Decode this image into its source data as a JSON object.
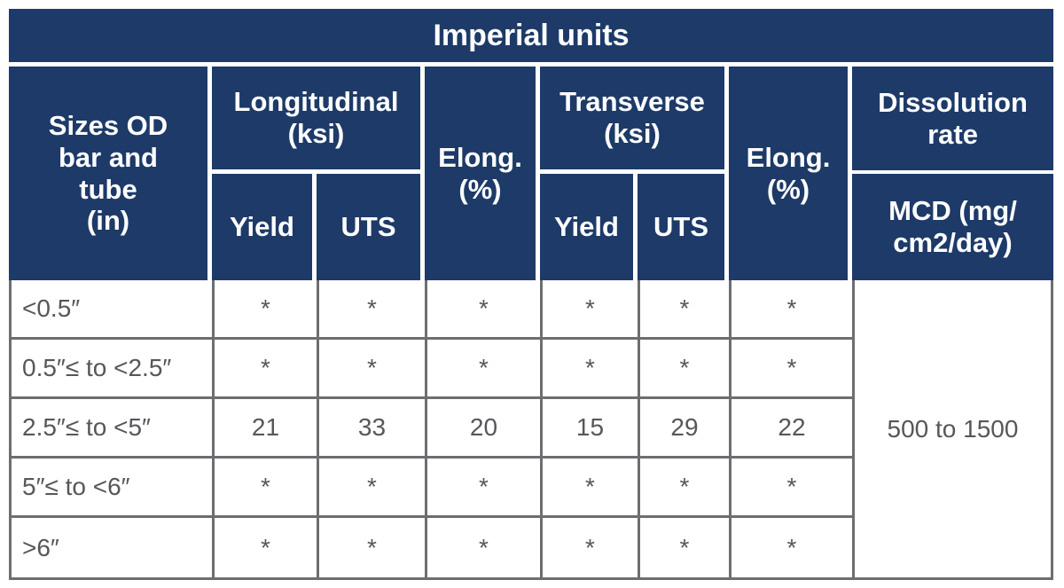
{
  "table": {
    "title": "Imperial units",
    "header": {
      "sizes": "Sizes OD\nbar and\ntube\n(in)",
      "longitudinal": "Longitudinal\n(ksi)",
      "transverse": "Transverse\n(ksi)",
      "elong_longitudinal": "Elong.\n(%)",
      "elong_transverse": "Elong.\n(%)",
      "yield_longitudinal": "Yield",
      "uts_longitudinal": "UTS",
      "yield_transverse": "Yield",
      "uts_transverse": "UTS",
      "dissolution": "Dissolution\nrate",
      "mcd": "MCD (mg/\ncm2/day)"
    },
    "rows": [
      {
        "size": "<0.5″",
        "values": [
          "*",
          "*",
          "*",
          "*",
          "*",
          "*"
        ]
      },
      {
        "size": "0.5″≤ to <2.5″",
        "values": [
          "*",
          "*",
          "*",
          "*",
          "*",
          "*"
        ]
      },
      {
        "size": "2.5″≤ to <5″",
        "values": [
          "21",
          "33",
          "20",
          "15",
          "29",
          "22"
        ]
      },
      {
        "size": "5″≤ to <6″",
        "values": [
          "*",
          "*",
          "*",
          "*",
          "*",
          "*"
        ]
      },
      {
        "size": ">6″",
        "values": [
          "*",
          "*",
          "*",
          "*",
          "*",
          "*"
        ]
      }
    ],
    "dissolution_value": "500 to 1500"
  },
  "colors": {
    "header_navy": "#1d3a68",
    "body_text_grey": "#56575b",
    "grid_grey": "#6d6e71",
    "header_text": "#ffffff"
  }
}
